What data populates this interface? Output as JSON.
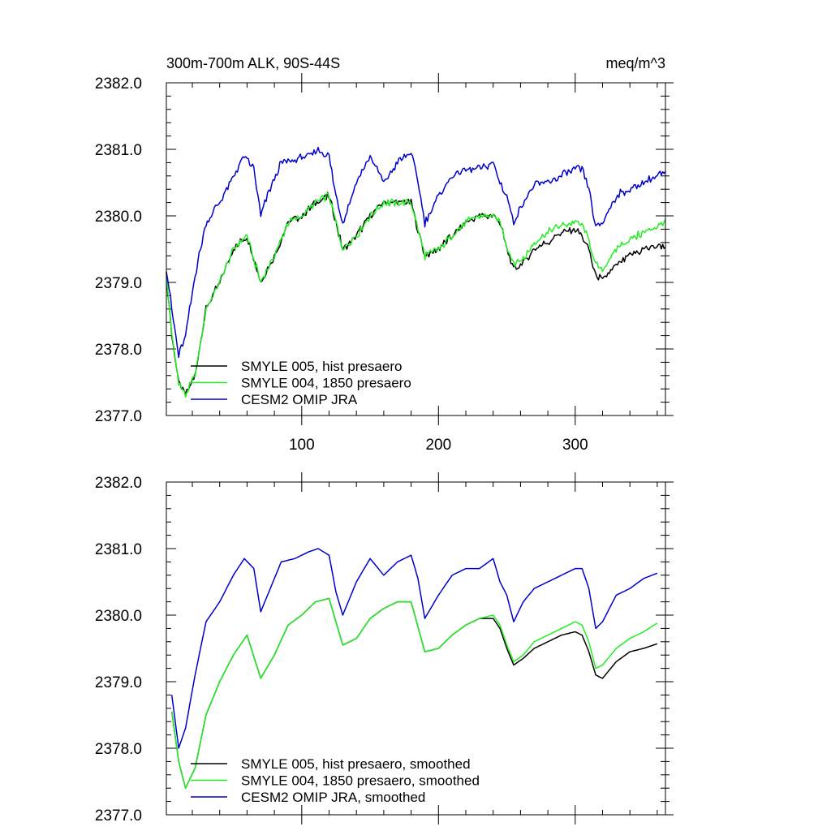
{
  "chart_data": [
    {
      "type": "line",
      "title": "300m-700m ALK, 90S-44S",
      "units": "meq/m^3",
      "xlim": [
        1,
        366
      ],
      "ylim": [
        2377.0,
        2382.0
      ],
      "x_ticks": [
        100,
        200,
        300
      ],
      "x_tick_labels": [
        "100",
        "200",
        "300"
      ],
      "y_ticks": [
        2377.0,
        2378.0,
        2379.0,
        2380.0,
        2381.0,
        2382.0
      ],
      "y_tick_labels": [
        "2377.0",
        "2378.0",
        "2379.0",
        "2380.0",
        "2381.0",
        "2382.0"
      ],
      "legend_position": "bottom-left",
      "noisy": true,
      "series": [
        {
          "name": "SMYLE 005, hist presaero",
          "color": "#000000",
          "x": [
            1,
            5,
            10,
            15,
            22,
            30,
            40,
            50,
            60,
            70,
            80,
            90,
            100,
            110,
            120,
            130,
            140,
            150,
            160,
            170,
            180,
            190,
            200,
            210,
            220,
            230,
            240,
            245,
            250,
            255,
            262,
            270,
            280,
            290,
            300,
            305,
            310,
            315,
            320,
            330,
            340,
            350,
            360,
            366
          ],
          "y": [
            2379.1,
            2378.2,
            2377.5,
            2377.3,
            2377.6,
            2378.6,
            2379.0,
            2379.5,
            2379.7,
            2379.0,
            2379.4,
            2379.9,
            2380.0,
            2380.2,
            2380.3,
            2379.5,
            2379.7,
            2380.0,
            2380.2,
            2380.2,
            2380.2,
            2379.4,
            2379.5,
            2379.7,
            2379.9,
            2380.0,
            2380.0,
            2379.9,
            2379.5,
            2379.2,
            2379.3,
            2379.5,
            2379.6,
            2379.75,
            2379.8,
            2379.7,
            2379.5,
            2379.1,
            2379.05,
            2379.25,
            2379.4,
            2379.5,
            2379.55,
            2379.55
          ]
        },
        {
          "name": "SMYLE 004, 1850 presaero",
          "color": "#22ee22",
          "x": [
            1,
            5,
            10,
            15,
            22,
            30,
            40,
            50,
            60,
            70,
            80,
            90,
            100,
            110,
            120,
            130,
            140,
            150,
            160,
            170,
            180,
            190,
            200,
            210,
            220,
            230,
            240,
            245,
            250,
            255,
            262,
            270,
            280,
            290,
            300,
            305,
            310,
            315,
            320,
            330,
            340,
            350,
            360,
            366
          ],
          "y": [
            2379.1,
            2378.2,
            2377.5,
            2377.3,
            2377.6,
            2378.6,
            2379.0,
            2379.5,
            2379.7,
            2379.0,
            2379.4,
            2379.9,
            2380.0,
            2380.2,
            2380.3,
            2379.5,
            2379.7,
            2380.0,
            2380.2,
            2380.2,
            2380.2,
            2379.4,
            2379.5,
            2379.7,
            2379.9,
            2380.0,
            2380.0,
            2379.9,
            2379.55,
            2379.3,
            2379.35,
            2379.6,
            2379.75,
            2379.85,
            2379.9,
            2379.85,
            2379.65,
            2379.25,
            2379.2,
            2379.5,
            2379.65,
            2379.75,
            2379.85,
            2379.9
          ]
        },
        {
          "name": "CESM2 OMIP JRA",
          "color": "#0000cc",
          "x": [
            1,
            5,
            10,
            15,
            22,
            30,
            40,
            50,
            58,
            65,
            70,
            75,
            85,
            95,
            105,
            112,
            120,
            125,
            130,
            140,
            150,
            160,
            170,
            180,
            185,
            190,
            200,
            210,
            220,
            230,
            240,
            245,
            250,
            255,
            262,
            270,
            280,
            290,
            300,
            305,
            310,
            315,
            320,
            330,
            340,
            350,
            360,
            366
          ],
          "y": [
            2379.2,
            2378.6,
            2377.9,
            2378.2,
            2379.1,
            2379.9,
            2380.2,
            2380.6,
            2380.9,
            2380.7,
            2380.0,
            2380.3,
            2380.8,
            2380.85,
            2380.9,
            2381.0,
            2380.9,
            2380.3,
            2379.9,
            2380.5,
            2380.9,
            2380.5,
            2380.8,
            2380.95,
            2380.5,
            2379.9,
            2380.3,
            2380.6,
            2380.7,
            2380.7,
            2380.8,
            2380.5,
            2380.3,
            2379.9,
            2380.2,
            2380.45,
            2380.5,
            2380.6,
            2380.7,
            2380.7,
            2380.4,
            2379.8,
            2379.9,
            2380.3,
            2380.4,
            2380.5,
            2380.6,
            2380.65
          ]
        }
      ]
    },
    {
      "type": "line",
      "xlim": [
        1,
        366
      ],
      "ylim": [
        2377.0,
        2382.0
      ],
      "y_ticks": [
        2377.0,
        2378.0,
        2379.0,
        2380.0,
        2381.0,
        2382.0
      ],
      "y_tick_labels": [
        "2377.0",
        "2378.0",
        "2379.0",
        "2380.0",
        "2381.0",
        "2382.0"
      ],
      "x_ticks": [
        100,
        200,
        300
      ],
      "legend_position": "bottom-left",
      "noisy": false,
      "series": [
        {
          "name": "SMYLE 005, hist presaero, smoothed",
          "color": "#000000",
          "x": [
            5,
            10,
            15,
            22,
            30,
            40,
            50,
            60,
            70,
            80,
            90,
            100,
            110,
            120,
            130,
            140,
            150,
            160,
            170,
            180,
            190,
            200,
            210,
            220,
            230,
            240,
            245,
            250,
            255,
            262,
            270,
            280,
            290,
            300,
            305,
            310,
            315,
            320,
            330,
            340,
            350,
            360
          ],
          "y": [
            2378.55,
            2377.8,
            2377.4,
            2377.7,
            2378.5,
            2379.0,
            2379.4,
            2379.7,
            2379.05,
            2379.4,
            2379.85,
            2380.0,
            2380.2,
            2380.25,
            2379.55,
            2379.65,
            2379.95,
            2380.1,
            2380.2,
            2380.2,
            2379.45,
            2379.5,
            2379.7,
            2379.85,
            2379.95,
            2379.95,
            2379.8,
            2379.5,
            2379.25,
            2379.35,
            2379.5,
            2379.6,
            2379.7,
            2379.75,
            2379.7,
            2379.45,
            2379.1,
            2379.05,
            2379.3,
            2379.45,
            2379.5,
            2379.57
          ]
        },
        {
          "name": "SMYLE 004, 1850 presaero, smoothed",
          "color": "#22ee22",
          "x": [
            5,
            10,
            15,
            22,
            30,
            40,
            50,
            60,
            70,
            80,
            90,
            100,
            110,
            120,
            130,
            140,
            150,
            160,
            170,
            180,
            190,
            200,
            210,
            220,
            230,
            240,
            245,
            250,
            255,
            262,
            270,
            280,
            290,
            300,
            305,
            310,
            315,
            320,
            330,
            340,
            350,
            360
          ],
          "y": [
            2378.55,
            2377.8,
            2377.4,
            2377.7,
            2378.5,
            2379.0,
            2379.4,
            2379.7,
            2379.05,
            2379.4,
            2379.85,
            2380.0,
            2380.2,
            2380.25,
            2379.55,
            2379.65,
            2379.95,
            2380.1,
            2380.2,
            2380.2,
            2379.45,
            2379.5,
            2379.7,
            2379.85,
            2379.95,
            2380.0,
            2379.85,
            2379.55,
            2379.3,
            2379.4,
            2379.6,
            2379.7,
            2379.8,
            2379.9,
            2379.85,
            2379.6,
            2379.2,
            2379.25,
            2379.5,
            2379.65,
            2379.75,
            2379.88
          ]
        },
        {
          "name": "CESM2 OMIP JRA, smoothed",
          "color": "#0000cc",
          "x": [
            5,
            10,
            15,
            22,
            30,
            40,
            50,
            58,
            65,
            70,
            75,
            85,
            95,
            105,
            112,
            120,
            125,
            130,
            140,
            150,
            160,
            170,
            180,
            185,
            190,
            200,
            210,
            220,
            230,
            240,
            245,
            250,
            255,
            262,
            270,
            280,
            290,
            300,
            305,
            310,
            315,
            320,
            330,
            340,
            350,
            360
          ],
          "y": [
            2378.8,
            2378.0,
            2378.3,
            2379.1,
            2379.9,
            2380.2,
            2380.6,
            2380.85,
            2380.7,
            2380.05,
            2380.3,
            2380.8,
            2380.85,
            2380.95,
            2381.0,
            2380.9,
            2380.35,
            2380.0,
            2380.5,
            2380.85,
            2380.6,
            2380.8,
            2380.9,
            2380.55,
            2379.95,
            2380.3,
            2380.6,
            2380.7,
            2380.7,
            2380.85,
            2380.5,
            2380.3,
            2379.9,
            2380.2,
            2380.4,
            2380.5,
            2380.6,
            2380.7,
            2380.7,
            2380.4,
            2379.8,
            2379.9,
            2380.3,
            2380.4,
            2380.55,
            2380.63
          ]
        }
      ]
    }
  ]
}
